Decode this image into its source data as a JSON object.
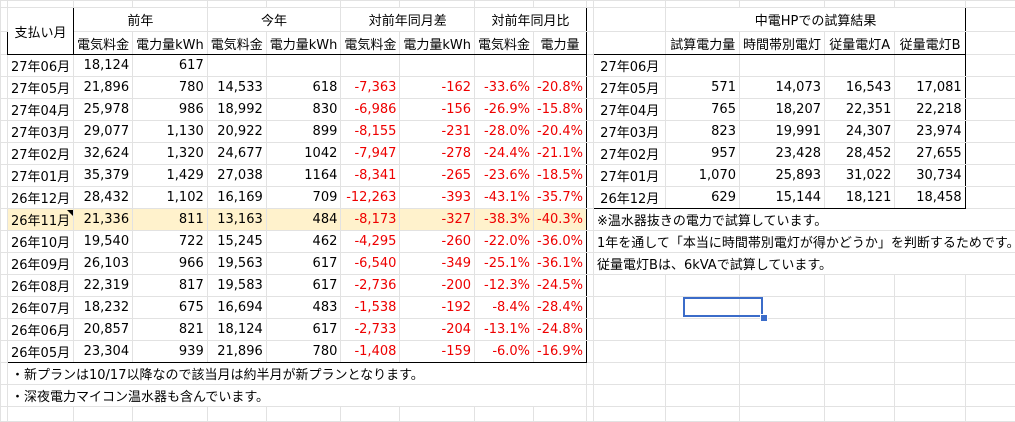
{
  "headers": {
    "pay_month": "支払い月",
    "groups": [
      "前年",
      "今年",
      "対前年同月差",
      "対前年同月比"
    ],
    "sub": [
      "電気料金",
      "電力量kWh",
      "電気料金",
      "電力量kWh",
      "電気料金",
      "電力量kWh",
      "電気料金",
      "電力量"
    ],
    "right_title": "中電HPでの試算結果",
    "right_sub": [
      "試算電力量",
      "時間帯別電灯",
      "従量電灯A",
      "従量電灯B"
    ]
  },
  "rows": [
    [
      "27年06月",
      "18,124",
      "617",
      "",
      "",
      "",
      "",
      "",
      ""
    ],
    [
      "27年05月",
      "21,896",
      "780",
      "14,533",
      "618",
      "-7,363",
      "-162",
      "-33.6%",
      "-20.8%"
    ],
    [
      "27年04月",
      "25,978",
      "986",
      "18,992",
      "830",
      "-6,986",
      "-156",
      "-26.9%",
      "-15.8%"
    ],
    [
      "27年03月",
      "29,077",
      "1,130",
      "20,922",
      "899",
      "-8,155",
      "-231",
      "-28.0%",
      "-20.4%"
    ],
    [
      "27年02月",
      "32,624",
      "1,320",
      "24,677",
      "1042",
      "-7,947",
      "-278",
      "-24.4%",
      "-21.1%"
    ],
    [
      "27年01月",
      "35,379",
      "1,429",
      "27,038",
      "1164",
      "-8,341",
      "-265",
      "-23.6%",
      "-18.5%"
    ],
    [
      "26年12月",
      "28,432",
      "1,102",
      "16,169",
      "709",
      "-12,263",
      "-393",
      "-43.1%",
      "-35.7%"
    ],
    [
      "26年11月",
      "21,336",
      "811",
      "13,163",
      "484",
      "-8,173",
      "-327",
      "-38.3%",
      "-40.3%"
    ],
    [
      "26年10月",
      "19,540",
      "722",
      "15,245",
      "462",
      "-4,295",
      "-260",
      "-22.0%",
      "-36.0%"
    ],
    [
      "26年09月",
      "26,103",
      "966",
      "19,563",
      "617",
      "-6,540",
      "-349",
      "-25.1%",
      "-36.1%"
    ],
    [
      "26年08月",
      "22,319",
      "817",
      "19,583",
      "617",
      "-2,736",
      "-200",
      "-12.3%",
      "-24.5%"
    ],
    [
      "26年07月",
      "18,232",
      "675",
      "16,694",
      "483",
      "-1,538",
      "-192",
      "-8.4%",
      "-28.4%"
    ],
    [
      "26年06月",
      "20,857",
      "821",
      "18,124",
      "617",
      "-2,733",
      "-204",
      "-13.1%",
      "-24.8%"
    ],
    [
      "26年05月",
      "23,304",
      "939",
      "21,896",
      "780",
      "-1,408",
      "-159",
      "-6.0%",
      "-16.9%"
    ]
  ],
  "right_rows": [
    [
      "27年06月",
      "",
      "",
      "",
      ""
    ],
    [
      "27年05月",
      "571",
      "14,073",
      "16,543",
      "17,081"
    ],
    [
      "27年04月",
      "765",
      "18,207",
      "22,351",
      "22,218"
    ],
    [
      "27年03月",
      "823",
      "19,991",
      "24,307",
      "23,974"
    ],
    [
      "27年02月",
      "957",
      "23,428",
      "28,452",
      "27,655"
    ],
    [
      "27年01月",
      "1,070",
      "25,893",
      "31,022",
      "30,734"
    ],
    [
      "26年12月",
      "629",
      "15,144",
      "18,121",
      "18,458"
    ]
  ],
  "right_notes": [
    "※温水器抜きの電力で試算しています。",
    "1年を通して「本当に時間帯別電灯が得かどうか」を判断するためです。",
    "従量電灯Bは、6kVAで試算しています。"
  ],
  "bottom_notes": [
    "・新プランは10/17以降なので該当月は約半月が新プランとなります。",
    "・深夜電力マイコン温水器も含んでいます。"
  ],
  "highlight_row_index": 7,
  "colors": {
    "negative": "#ee0000",
    "highlight": "#fff2cc",
    "selection": "#3b6cc9",
    "gridline": "#e2e2e2"
  }
}
